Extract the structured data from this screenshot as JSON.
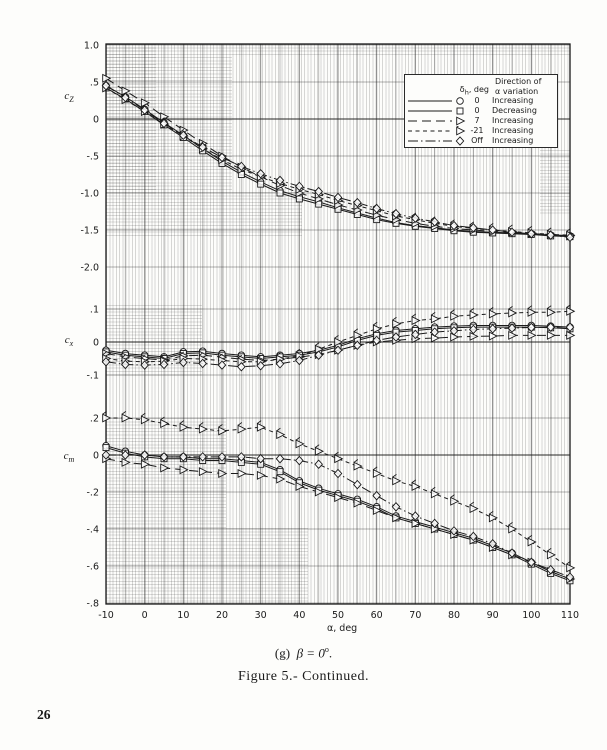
{
  "page": {
    "number": "26"
  },
  "caption": {
    "index": "(g)",
    "body": "β = 0",
    "sup": "o",
    "period": ".",
    "figure": "Figure 5.- Continued."
  },
  "legend": {
    "delta_symbol": "δ",
    "delta_sub": "h",
    "delta_unit": ", deg",
    "direction_line1": "Direction of",
    "direction_line2": "α variation",
    "rows": [
      {
        "marker": "circle",
        "line": "solid",
        "value": "0",
        "direction": "Increasing"
      },
      {
        "marker": "square",
        "line": "solid",
        "value": "0",
        "direction": "Decreasing"
      },
      {
        "marker": "triangle",
        "line": "longdash",
        "value": "7",
        "direction": "Increasing"
      },
      {
        "marker": "triangle-flag",
        "line": "dash",
        "value": "-21",
        "direction": "Increasing"
      },
      {
        "marker": "diamond",
        "line": "dashdot",
        "value": "Off",
        "direction": "Increasing"
      }
    ]
  },
  "chart_data": {
    "type": "line",
    "title": "",
    "xlabel": "α,  deg",
    "x_ticks": [
      -10,
      0,
      10,
      20,
      30,
      40,
      50,
      60,
      70,
      80,
      90,
      100,
      110
    ],
    "xlim": [
      -10,
      110
    ],
    "grid": "fine engineering grid",
    "legend_position": "top-right inset box",
    "alpha": [
      -10,
      -5,
      0,
      5,
      10,
      15,
      20,
      25,
      30,
      35,
      40,
      45,
      50,
      55,
      60,
      65,
      70,
      75,
      80,
      85,
      90,
      95,
      100,
      105,
      110
    ],
    "panels": [
      {
        "id": "cz",
        "label": "c",
        "label_sub": "Z",
        "ylim": [
          -2.0,
          1.0
        ],
        "ticks": [
          {
            "label": "1.0",
            "value": 1.0
          },
          {
            "label": ".5",
            "value": 0.5
          },
          {
            "label": "0",
            "value": 0
          },
          {
            "label": "-.5",
            "value": -0.5
          },
          {
            "label": "-1.0",
            "value": -1.0
          },
          {
            "label": "-1.5",
            "value": -1.5
          },
          {
            "label": "-2.0",
            "value": -2.0
          }
        ],
        "series": [
          {
            "name": "dh0-increasing",
            "marker": "circle",
            "line": "solid",
            "values": [
              0.45,
              0.3,
              0.13,
              -0.05,
              -0.22,
              -0.4,
              -0.57,
              -0.72,
              -0.85,
              -0.97,
              -1.05,
              -1.12,
              -1.2,
              -1.27,
              -1.34,
              -1.4,
              -1.44,
              -1.47,
              -1.5,
              -1.52,
              -1.53,
              -1.54,
              -1.55,
              -1.57,
              -1.58
            ]
          },
          {
            "name": "dh0-decreasing",
            "marker": "square",
            "line": "solid",
            "values": [
              0.42,
              0.27,
              0.1,
              -0.08,
              -0.25,
              -0.43,
              -0.6,
              -0.75,
              -0.88,
              -1.0,
              -1.08,
              -1.15,
              -1.22,
              -1.29,
              -1.36,
              -1.41,
              -1.45,
              -1.48,
              -1.51,
              -1.53,
              -1.54,
              -1.55,
              -1.56,
              -1.58,
              -1.59
            ]
          },
          {
            "name": "dh7-increasing",
            "marker": "triangle",
            "line": "longdash",
            "values": [
              0.55,
              0.38,
              0.22,
              0.03,
              -0.15,
              -0.33,
              -0.5,
              -0.65,
              -0.78,
              -0.9,
              -1.0,
              -1.08,
              -1.16,
              -1.23,
              -1.3,
              -1.36,
              -1.41,
              -1.45,
              -1.48,
              -1.5,
              -1.52,
              -1.53,
              -1.55,
              -1.56,
              -1.58
            ]
          },
          {
            "name": "dh-21-increasing",
            "marker": "triangle-flag",
            "line": "dash",
            "values": [
              0.42,
              0.26,
              0.1,
              -0.07,
              -0.23,
              -0.4,
              -0.55,
              -0.68,
              -0.78,
              -0.87,
              -0.95,
              -1.02,
              -1.1,
              -1.17,
              -1.24,
              -1.31,
              -1.36,
              -1.41,
              -1.45,
              -1.48,
              -1.5,
              -1.52,
              -1.54,
              -1.56,
              -1.57
            ]
          },
          {
            "name": "stab-off-increasing",
            "marker": "diamond",
            "line": "dashdot",
            "values": [
              0.45,
              0.29,
              0.12,
              -0.06,
              -0.22,
              -0.38,
              -0.52,
              -0.64,
              -0.74,
              -0.83,
              -0.91,
              -0.98,
              -1.06,
              -1.13,
              -1.21,
              -1.28,
              -1.34,
              -1.39,
              -1.44,
              -1.47,
              -1.5,
              -1.53,
              -1.55,
              -1.57,
              -1.6
            ]
          }
        ]
      },
      {
        "id": "cx",
        "label": "c",
        "label_sub": "x",
        "ylim": [
          -0.1,
          0.1
        ],
        "ticks": [
          {
            "label": ".1",
            "value": 0.1
          },
          {
            "label": "0",
            "value": 0
          },
          {
            "label": "-.1",
            "value": -0.1
          }
        ],
        "series": [
          {
            "name": "dh0-increasing",
            "marker": "circle",
            "line": "solid",
            "values": [
              -0.025,
              -0.035,
              -0.04,
              -0.045,
              -0.03,
              -0.028,
              -0.035,
              -0.04,
              -0.045,
              -0.04,
              -0.035,
              -0.025,
              -0.01,
              0.01,
              0.025,
              0.035,
              0.04,
              0.045,
              0.048,
              0.05,
              0.05,
              0.05,
              0.05,
              0.048,
              0.045
            ]
          },
          {
            "name": "dh0-decreasing",
            "marker": "square",
            "line": "solid",
            "values": [
              -0.03,
              -0.04,
              -0.045,
              -0.05,
              -0.035,
              -0.033,
              -0.04,
              -0.045,
              -0.05,
              -0.045,
              -0.04,
              -0.03,
              -0.015,
              0.005,
              0.02,
              0.03,
              0.035,
              0.04,
              0.043,
              0.045,
              0.045,
              0.045,
              0.045,
              0.043,
              0.04
            ]
          },
          {
            "name": "dh7-increasing",
            "marker": "triangle",
            "line": "longdash",
            "values": [
              -0.035,
              -0.045,
              -0.05,
              -0.055,
              -0.042,
              -0.04,
              -0.046,
              -0.052,
              -0.056,
              -0.052,
              -0.046,
              -0.038,
              -0.025,
              -0.01,
              0.0,
              0.005,
              0.01,
              0.012,
              0.015,
              0.017,
              0.018,
              0.02,
              0.02,
              0.02,
              0.02
            ]
          },
          {
            "name": "dh-21-increasing",
            "marker": "triangle-flag",
            "line": "dash",
            "values": [
              -0.05,
              -0.058,
              -0.06,
              -0.058,
              -0.05,
              -0.052,
              -0.056,
              -0.06,
              -0.06,
              -0.052,
              -0.042,
              -0.022,
              0.0,
              0.02,
              0.04,
              0.055,
              0.065,
              0.07,
              0.078,
              0.082,
              0.085,
              0.088,
              0.09,
              0.09,
              0.093
            ]
          },
          {
            "name": "stab-off-increasing",
            "marker": "diamond",
            "line": "dashdot",
            "values": [
              -0.06,
              -0.068,
              -0.07,
              -0.068,
              -0.062,
              -0.065,
              -0.07,
              -0.075,
              -0.072,
              -0.066,
              -0.056,
              -0.04,
              -0.025,
              -0.01,
              0.005,
              0.015,
              0.023,
              0.03,
              0.034,
              0.038,
              0.04,
              0.042,
              0.044,
              0.045,
              0.045
            ]
          }
        ]
      },
      {
        "id": "cm",
        "label": "c",
        "label_sub": "m",
        "ylim": [
          -0.8,
          0.2
        ],
        "ticks": [
          {
            "label": ".2",
            "value": 0.2
          },
          {
            "label": "0",
            "value": 0
          },
          {
            "label": "-.2",
            "value": -0.2
          },
          {
            "label": "-.4",
            "value": -0.4
          },
          {
            "label": "-.6",
            "value": -0.6
          },
          {
            "label": "-.8",
            "value": -0.8
          }
        ],
        "series": [
          {
            "name": "dh0-increasing",
            "marker": "circle",
            "line": "solid",
            "values": [
              0.05,
              0.02,
              0.0,
              -0.01,
              -0.01,
              -0.02,
              -0.02,
              -0.03,
              -0.04,
              -0.08,
              -0.14,
              -0.18,
              -0.21,
              -0.24,
              -0.28,
              -0.33,
              -0.36,
              -0.39,
              -0.42,
              -0.45,
              -0.49,
              -0.53,
              -0.58,
              -0.63,
              -0.67
            ]
          },
          {
            "name": "dh0-decreasing",
            "marker": "square",
            "line": "solid",
            "values": [
              0.04,
              0.01,
              -0.01,
              -0.02,
              -0.02,
              -0.03,
              -0.03,
              -0.04,
              -0.05,
              -0.09,
              -0.15,
              -0.19,
              -0.22,
              -0.25,
              -0.29,
              -0.34,
              -0.37,
              -0.4,
              -0.43,
              -0.46,
              -0.5,
              -0.54,
              -0.59,
              -0.64,
              -0.68
            ]
          },
          {
            "name": "dh7-increasing",
            "marker": "triangle",
            "line": "longdash",
            "values": [
              -0.02,
              -0.04,
              -0.05,
              -0.07,
              -0.08,
              -0.09,
              -0.1,
              -0.1,
              -0.11,
              -0.13,
              -0.17,
              -0.2,
              -0.23,
              -0.26,
              -0.3,
              -0.34,
              -0.37,
              -0.4,
              -0.43,
              -0.46,
              -0.5,
              -0.54,
              -0.58,
              -0.63,
              -0.67
            ]
          },
          {
            "name": "dh-21-increasing",
            "marker": "triangle-flag",
            "line": "dash",
            "values": [
              0.2,
              0.2,
              0.19,
              0.17,
              0.15,
              0.14,
              0.13,
              0.14,
              0.15,
              0.11,
              0.06,
              0.02,
              -0.02,
              -0.06,
              -0.1,
              -0.14,
              -0.17,
              -0.21,
              -0.25,
              -0.29,
              -0.34,
              -0.4,
              -0.47,
              -0.54,
              -0.61
            ]
          },
          {
            "name": "stab-off-increasing",
            "marker": "diamond",
            "line": "dashdot",
            "values": [
              0.0,
              0.0,
              0.0,
              -0.01,
              -0.01,
              -0.01,
              -0.01,
              -0.01,
              -0.02,
              -0.02,
              -0.03,
              -0.05,
              -0.1,
              -0.16,
              -0.22,
              -0.28,
              -0.33,
              -0.37,
              -0.41,
              -0.44,
              -0.48,
              -0.53,
              -0.58,
              -0.62,
              -0.66
            ]
          }
        ]
      }
    ]
  },
  "colors": {
    "ink": "#1a1a1a",
    "paper": "#fdfdfb",
    "grid_fine": "rgba(20,20,20,0.17)"
  }
}
